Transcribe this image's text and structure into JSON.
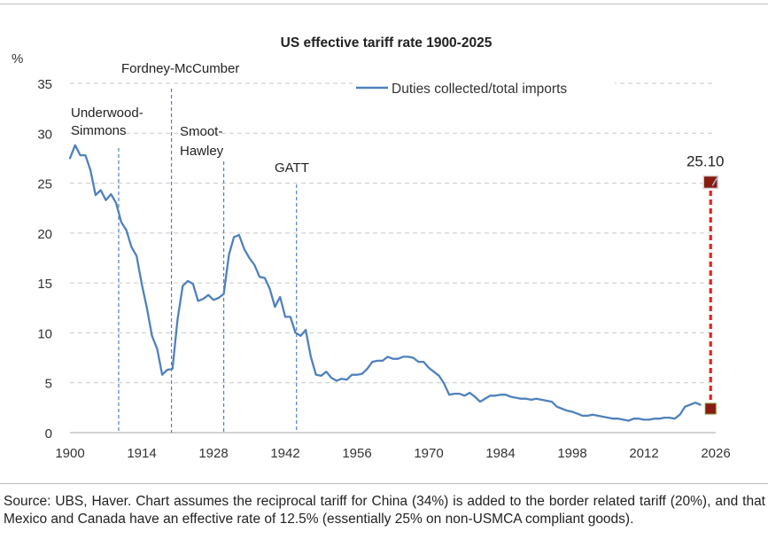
{
  "chart_data": {
    "type": "line",
    "title": "US effective tariff rate 1900-2025",
    "ylabel": "%",
    "xlabel": "",
    "xlim": [
      1900,
      2026
    ],
    "ylim": [
      0,
      35
    ],
    "x_ticks": [
      "1900",
      "1914",
      "1928",
      "1942",
      "1956",
      "1970",
      "1984",
      "1998",
      "2012",
      "2026"
    ],
    "y_ticks": [
      "0",
      "5",
      "10",
      "15",
      "20",
      "25",
      "30",
      "35"
    ],
    "grid": "horizontal dashed",
    "legend_position": "top-right",
    "series": [
      {
        "name": "Duties collected/total imports",
        "color": "#4f81bd",
        "x": [
          1900,
          1901,
          1902,
          1903,
          1904,
          1905,
          1906,
          1907,
          1908,
          1909,
          1910,
          1911,
          1912,
          1913,
          1914,
          1915,
          1916,
          1917,
          1918,
          1919,
          1920,
          1921,
          1922,
          1923,
          1924,
          1925,
          1926,
          1927,
          1928,
          1929,
          1930,
          1931,
          1932,
          1933,
          1934,
          1935,
          1936,
          1937,
          1938,
          1939,
          1940,
          1941,
          1942,
          1943,
          1944,
          1945,
          1946,
          1947,
          1948,
          1949,
          1950,
          1951,
          1952,
          1953,
          1954,
          1955,
          1956,
          1957,
          1958,
          1959,
          1960,
          1961,
          1962,
          1963,
          1964,
          1965,
          1966,
          1967,
          1968,
          1969,
          1970,
          1971,
          1972,
          1973,
          1974,
          1975,
          1976,
          1977,
          1978,
          1979,
          1980,
          1981,
          1982,
          1983,
          1984,
          1985,
          1986,
          1987,
          1988,
          1989,
          1990,
          1991,
          1992,
          1993,
          1994,
          1995,
          1996,
          1997,
          1998,
          1999,
          2000,
          2001,
          2002,
          2003,
          2004,
          2005,
          2006,
          2007,
          2008,
          2009,
          2010,
          2011,
          2012,
          2013,
          2014,
          2015,
          2016,
          2017,
          2018,
          2019,
          2020,
          2021,
          2022,
          2023
        ],
        "y": [
          27.5,
          28.8,
          27.8,
          27.8,
          26.3,
          23.8,
          24.3,
          23.3,
          23.9,
          23.0,
          21.1,
          20.3,
          18.6,
          17.7,
          14.9,
          12.5,
          9.7,
          8.4,
          5.8,
          6.3,
          6.4,
          11.4,
          14.7,
          15.2,
          14.9,
          13.2,
          13.4,
          13.8,
          13.3,
          13.5,
          13.9,
          17.8,
          19.6,
          19.8,
          18.4,
          17.5,
          16.8,
          15.6,
          15.5,
          14.4,
          12.6,
          13.6,
          11.6,
          11.6,
          10.0,
          9.7,
          10.3,
          7.6,
          5.8,
          5.7,
          6.1,
          5.5,
          5.2,
          5.4,
          5.3,
          5.8,
          5.8,
          5.9,
          6.4,
          7.1,
          7.2,
          7.2,
          7.6,
          7.4,
          7.4,
          7.6,
          7.6,
          7.5,
          7.1,
          7.1,
          6.5,
          6.1,
          5.7,
          4.9,
          3.8,
          3.9,
          3.9,
          3.7,
          4.0,
          3.6,
          3.1,
          3.4,
          3.7,
          3.7,
          3.8,
          3.8,
          3.6,
          3.5,
          3.4,
          3.4,
          3.3,
          3.4,
          3.3,
          3.2,
          3.1,
          2.6,
          2.4,
          2.2,
          2.1,
          1.9,
          1.7,
          1.7,
          1.8,
          1.7,
          1.6,
          1.5,
          1.4,
          1.4,
          1.3,
          1.2,
          1.4,
          1.4,
          1.3,
          1.3,
          1.4,
          1.4,
          1.5,
          1.5,
          1.4,
          1.8,
          2.6,
          2.8,
          3.0,
          2.8
        ]
      }
    ],
    "projection": {
      "x": [
        2025,
        2025
      ],
      "y": [
        2.4,
        25.1
      ],
      "color": "#e8211a",
      "marker_color": "#8b1a10",
      "label": "25.10"
    },
    "annotations": [
      {
        "lines": [
          "Underwood-",
          "Simmons"
        ],
        "x": 1909.5
      },
      {
        "lines": [
          "Fordney-McCumber"
        ],
        "x": 1919.8
      },
      {
        "lines": [
          "Smoot-",
          "Hawley"
        ],
        "x": 1930.0
      },
      {
        "lines": [
          "GATT"
        ],
        "x": 1944.2
      }
    ]
  },
  "footer": {
    "source": "Source: UBS, Haver. Chart assumes the reciprocal tariff for China (34%) is added to the border related tariff (20%), and that Mexico and Canada have an effective rate of 12.5% (essentially 25% on non-USMCA compliant goods)."
  }
}
